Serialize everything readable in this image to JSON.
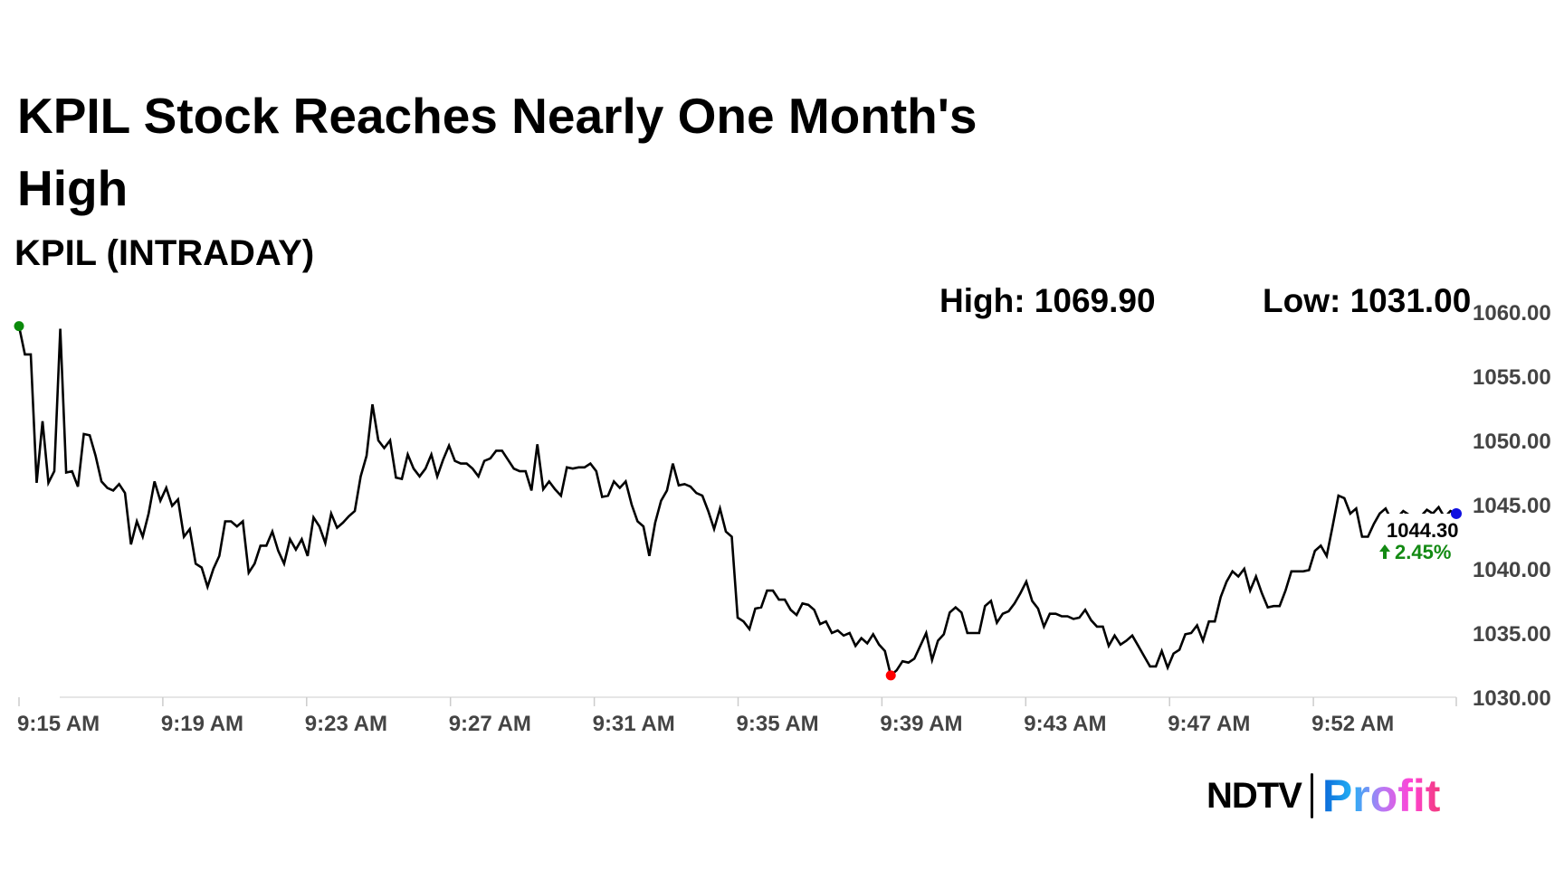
{
  "title": "KPIL Stock Reaches Nearly One Month's High",
  "subtitle": "KPIL (INTRADAY)",
  "high_label": "High: 1069.90",
  "low_label": "Low: 1031.00",
  "last_price": "1044.30",
  "change": "2.45%",
  "change_icon": "arrow-up-icon",
  "logo": {
    "left": "NDTV",
    "right": "Profit"
  },
  "colors": {
    "line": "#000000",
    "start_dot": "#0a8a0a",
    "low_dot": "#ff0000",
    "end_dot": "#1010e0",
    "change": "#138a13",
    "axis_text": "#444444"
  },
  "chart_data": {
    "type": "line",
    "title": "KPIL (INTRADAY)",
    "xlabel": "",
    "ylabel": "",
    "ylim": [
      1030,
      1060
    ],
    "yticks": [
      "1060.00",
      "1055.00",
      "1050.00",
      "1045.00",
      "1040.00",
      "1035.00",
      "1030.00"
    ],
    "ytick_values": [
      1060,
      1055,
      1050,
      1045,
      1040,
      1035,
      1030
    ],
    "xticks": [
      "9:15 AM",
      "9:19 AM",
      "9:23 AM",
      "9:27 AM",
      "9:31 AM",
      "9:35 AM",
      "9:39 AM",
      "9:43 AM",
      "9:47 AM",
      "9:52 AM"
    ],
    "grid": false,
    "values": [
      1058.9,
      1056.7,
      1056.7,
      1046.7,
      1051.5,
      1046.7,
      1047.6,
      1058.7,
      1047.5,
      1047.6,
      1046.4,
      1050.5,
      1050.4,
      1048.8,
      1046.8,
      1046.3,
      1046.1,
      1046.6,
      1045.9,
      1041.9,
      1043.7,
      1042.5,
      1044.3,
      1046.8,
      1045.3,
      1046.3,
      1044.9,
      1045.4,
      1042.5,
      1043.1,
      1040.4,
      1040.1,
      1038.6,
      1040.0,
      1041.0,
      1043.7,
      1043.7,
      1043.3,
      1043.7,
      1039.7,
      1040.4,
      1041.8,
      1041.8,
      1042.9,
      1041.4,
      1040.4,
      1042.3,
      1041.5,
      1042.3,
      1041.0,
      1044.0,
      1043.3,
      1042.0,
      1044.3,
      1043.2,
      1043.6,
      1044.1,
      1044.5,
      1047.2,
      1048.8,
      1052.8,
      1050.0,
      1049.4,
      1050.0,
      1047.1,
      1047.0,
      1048.9,
      1047.8,
      1047.2,
      1047.8,
      1048.9,
      1047.2,
      1048.5,
      1049.6,
      1048.4,
      1048.2,
      1048.2,
      1047.8,
      1047.2,
      1048.4,
      1048.6,
      1049.2,
      1049.2,
      1048.5,
      1047.8,
      1047.6,
      1047.6,
      1046.1,
      1049.7,
      1046.2,
      1046.8,
      1046.2,
      1045.7,
      1047.9,
      1047.8,
      1047.9,
      1047.9,
      1048.2,
      1047.6,
      1045.6,
      1045.7,
      1046.8,
      1046.3,
      1046.8,
      1045.0,
      1043.7,
      1043.3,
      1041.0,
      1043.6,
      1045.3,
      1046.1,
      1048.2,
      1046.5,
      1046.6,
      1046.4,
      1045.9,
      1045.7,
      1044.5,
      1043.1,
      1044.7,
      1042.9,
      1042.5,
      1036.2,
      1035.9,
      1035.3,
      1036.9,
      1037.0,
      1038.3,
      1038.3,
      1037.6,
      1037.6,
      1036.8,
      1036.4,
      1037.3,
      1037.2,
      1036.8,
      1035.7,
      1035.9,
      1035.0,
      1035.2,
      1034.8,
      1035.0,
      1034.0,
      1034.6,
      1034.2,
      1034.9,
      1034.1,
      1033.6,
      1031.7,
      1032.1,
      1032.8,
      1032.7,
      1033.0,
      1034.0,
      1035.0,
      1032.9,
      1034.4,
      1034.9,
      1036.6,
      1037.0,
      1036.6,
      1035.0,
      1035.0,
      1035.0,
      1037.1,
      1037.5,
      1035.8,
      1036.5,
      1036.7,
      1037.3,
      1038.1,
      1039.0,
      1037.5,
      1036.9,
      1035.5,
      1036.5,
      1036.5,
      1036.3,
      1036.3,
      1036.1,
      1036.2,
      1036.8,
      1036.0,
      1035.5,
      1035.5,
      1034.0,
      1034.8,
      1034.1,
      1034.4,
      1034.8,
      1034.0,
      1033.2,
      1032.4,
      1032.4,
      1033.6,
      1032.3,
      1033.4,
      1033.7,
      1034.9,
      1035.0,
      1035.6,
      1034.4,
      1035.9,
      1035.9,
      1037.8,
      1039.0,
      1039.8,
      1039.4,
      1040.0,
      1038.3,
      1039.4,
      1038.1,
      1037.0,
      1037.1,
      1037.1,
      1038.3,
      1039.8,
      1039.8,
      1039.8,
      1039.9,
      1041.4,
      1041.8,
      1041.0,
      1043.3,
      1045.7,
      1045.5,
      1044.3,
      1044.7,
      1042.5,
      1042.5,
      1043.5,
      1044.3,
      1044.7,
      1043.8,
      1044.0,
      1044.5,
      1044.2,
      1043.9,
      1044.1,
      1044.6,
      1044.3,
      1044.8,
      1044.0,
      1044.5,
      1044.3
    ]
  }
}
